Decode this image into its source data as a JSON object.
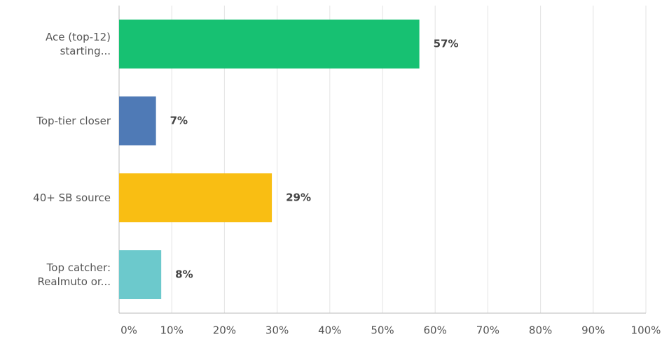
{
  "chart_data": {
    "type": "bar",
    "orientation": "horizontal",
    "categories": [
      "Ace (top-12) starting...",
      "Top-tier closer",
      "40+ SB source",
      "Top catcher: Realmuto or..."
    ],
    "values": [
      57,
      7,
      29,
      8
    ],
    "value_labels": [
      "57%",
      "7%",
      "29%",
      "8%"
    ],
    "colors": [
      "#17c172",
      "#4f7ab6",
      "#f9be13",
      "#6cc9cc"
    ],
    "xlim": [
      0,
      100
    ],
    "xticks": [
      {
        "value": 0,
        "label": "0%"
      },
      {
        "value": 10,
        "label": "10%"
      },
      {
        "value": 20,
        "label": "20%"
      },
      {
        "value": 30,
        "label": "30%"
      },
      {
        "value": 40,
        "label": "40%"
      },
      {
        "value": 50,
        "label": "50%"
      },
      {
        "value": 60,
        "label": "60%"
      },
      {
        "value": 70,
        "label": "70%"
      },
      {
        "value": 80,
        "label": "80%"
      },
      {
        "value": 90,
        "label": "90%"
      },
      {
        "value": 100,
        "label": "100%"
      }
    ],
    "grid": true
  }
}
